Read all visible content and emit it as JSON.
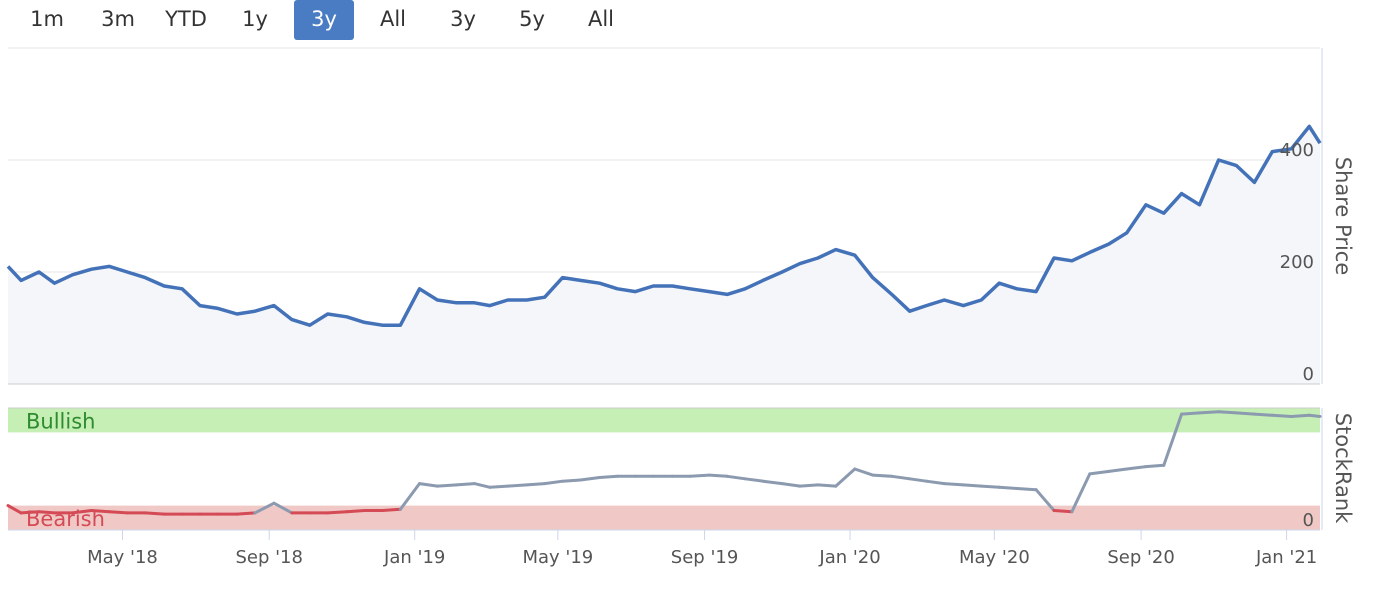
{
  "range_selector": {
    "buttons": [
      {
        "label": "1m",
        "active": false
      },
      {
        "label": "3m",
        "active": false
      },
      {
        "label": "YTD",
        "active": false
      },
      {
        "label": "1y",
        "active": false
      },
      {
        "label": "3y",
        "active": true
      },
      {
        "label": "All",
        "active": false
      },
      {
        "label": "3y",
        "active": false
      },
      {
        "label": "5y",
        "active": false
      },
      {
        "label": "All",
        "active": false
      }
    ]
  },
  "colors": {
    "price_line": "#4472b8",
    "price_fill": "#f4f6fa",
    "rank_neutral": "#8c9ab0",
    "rank_bearish": "#d44a55",
    "bullish_band": "#c6efb6",
    "bearish_band": "#f0c9c7",
    "bullish_text": "#2e8b2e",
    "bearish_text": "#d44a55",
    "active_button": "#4a7cc4"
  },
  "chart_data": [
    {
      "type": "line",
      "ylabel": "Share Price",
      "ylim": [
        0,
        600
      ],
      "yticks": [
        0,
        200,
        400
      ],
      "xlim": [
        "2018-01-25",
        "2021-01-29"
      ],
      "x_tick_labels": [
        {
          "date": "2018-05-01",
          "label": "May '18"
        },
        {
          "date": "2018-09-01",
          "label": "Sep '18"
        },
        {
          "date": "2019-01-01",
          "label": "Jan '19"
        },
        {
          "date": "2019-05-01",
          "label": "May '19"
        },
        {
          "date": "2019-09-01",
          "label": "Sep '19"
        },
        {
          "date": "2020-01-01",
          "label": "Jan '20"
        },
        {
          "date": "2020-05-01",
          "label": "May '20"
        },
        {
          "date": "2020-09-01",
          "label": "Sep '20"
        },
        {
          "date": "2021-01-01",
          "label": "Jan '21"
        }
      ],
      "series": [
        {
          "x": [
            "2018-01-25",
            "2018-02-05",
            "2018-02-20",
            "2018-03-05",
            "2018-03-20",
            "2018-04-05",
            "2018-04-20",
            "2018-05-05",
            "2018-05-20",
            "2018-06-05",
            "2018-06-20",
            "2018-07-05",
            "2018-07-20",
            "2018-08-05",
            "2018-08-20",
            "2018-09-05",
            "2018-09-20",
            "2018-10-05",
            "2018-10-20",
            "2018-11-05",
            "2018-11-20",
            "2018-12-05",
            "2018-12-20",
            "2019-01-05",
            "2019-01-20",
            "2019-02-05",
            "2019-02-20",
            "2019-03-05",
            "2019-03-20",
            "2019-04-05",
            "2019-04-20",
            "2019-05-05",
            "2019-05-20",
            "2019-06-05",
            "2019-06-20",
            "2019-07-05",
            "2019-07-20",
            "2019-08-05",
            "2019-08-20",
            "2019-09-05",
            "2019-09-20",
            "2019-10-05",
            "2019-10-20",
            "2019-11-05",
            "2019-11-20",
            "2019-12-05",
            "2019-12-20",
            "2020-01-05",
            "2020-01-20",
            "2020-02-05",
            "2020-02-20",
            "2020-03-05",
            "2020-03-20",
            "2020-04-05",
            "2020-04-20",
            "2020-05-05",
            "2020-05-20",
            "2020-06-05",
            "2020-06-20",
            "2020-07-05",
            "2020-07-20",
            "2020-08-05",
            "2020-08-20",
            "2020-09-05",
            "2020-09-20",
            "2020-10-05",
            "2020-10-20",
            "2020-11-05",
            "2020-11-20",
            "2020-12-05",
            "2020-12-20",
            "2021-01-05",
            "2021-01-20",
            "2021-01-29"
          ],
          "values": [
            210,
            185,
            200,
            180,
            195,
            205,
            210,
            200,
            190,
            175,
            170,
            140,
            135,
            125,
            130,
            140,
            115,
            105,
            125,
            120,
            110,
            105,
            105,
            170,
            150,
            145,
            145,
            140,
            150,
            150,
            155,
            190,
            185,
            180,
            170,
            165,
            175,
            175,
            170,
            165,
            160,
            170,
            185,
            200,
            215,
            225,
            240,
            230,
            190,
            160,
            130,
            140,
            150,
            140,
            150,
            180,
            170,
            165,
            225,
            220,
            235,
            250,
            270,
            320,
            305,
            340,
            320,
            400,
            390,
            360,
            415,
            420,
            460,
            430
          ]
        }
      ]
    },
    {
      "type": "line",
      "ylabel": "StockRank",
      "yticks": [
        0
      ],
      "ylim": [
        0,
        100
      ],
      "bands": [
        {
          "label": "Bullish",
          "from": 80,
          "to": 100
        },
        {
          "label": "Bearish",
          "from": 0,
          "to": 20
        }
      ],
      "series": [
        {
          "x": [
            "2018-01-25",
            "2018-02-05",
            "2018-02-20",
            "2018-03-05",
            "2018-03-20",
            "2018-04-05",
            "2018-04-20",
            "2018-05-05",
            "2018-05-20",
            "2018-06-05",
            "2018-06-20",
            "2018-07-05",
            "2018-07-20",
            "2018-08-05",
            "2018-08-20",
            "2018-09-05",
            "2018-09-20",
            "2018-10-05",
            "2018-10-20",
            "2018-11-05",
            "2018-11-20",
            "2018-12-05",
            "2018-12-20",
            "2019-01-05",
            "2019-01-20",
            "2019-02-05",
            "2019-02-20",
            "2019-03-05",
            "2019-03-20",
            "2019-04-05",
            "2019-04-20",
            "2019-05-05",
            "2019-05-20",
            "2019-06-05",
            "2019-06-20",
            "2019-07-05",
            "2019-07-20",
            "2019-08-05",
            "2019-08-20",
            "2019-09-05",
            "2019-09-20",
            "2019-10-05",
            "2019-10-20",
            "2019-11-05",
            "2019-11-20",
            "2019-12-05",
            "2019-12-20",
            "2020-01-05",
            "2020-01-20",
            "2020-02-05",
            "2020-02-20",
            "2020-03-05",
            "2020-03-20",
            "2020-04-05",
            "2020-04-20",
            "2020-05-05",
            "2020-05-20",
            "2020-06-05",
            "2020-06-20",
            "2020-07-05",
            "2020-07-20",
            "2020-08-05",
            "2020-08-20",
            "2020-09-05",
            "2020-09-20",
            "2020-10-05",
            "2020-10-20",
            "2020-11-05",
            "2020-11-20",
            "2020-12-05",
            "2020-12-20",
            "2021-01-05",
            "2021-01-20",
            "2021-01-29"
          ],
          "values": [
            20,
            14,
            15,
            14,
            14,
            16,
            15,
            14,
            14,
            13,
            13,
            13,
            13,
            13,
            14,
            22,
            14,
            14,
            14,
            15,
            16,
            16,
            17,
            38,
            36,
            37,
            38,
            35,
            36,
            37,
            38,
            40,
            41,
            43,
            44,
            44,
            44,
            44,
            44,
            45,
            44,
            42,
            40,
            38,
            36,
            37,
            36,
            50,
            45,
            44,
            42,
            40,
            38,
            37,
            36,
            35,
            34,
            33,
            16,
            15,
            46,
            48,
            50,
            52,
            53,
            95,
            96,
            97,
            96,
            95,
            94,
            93,
            94,
            93
          ]
        }
      ]
    }
  ]
}
